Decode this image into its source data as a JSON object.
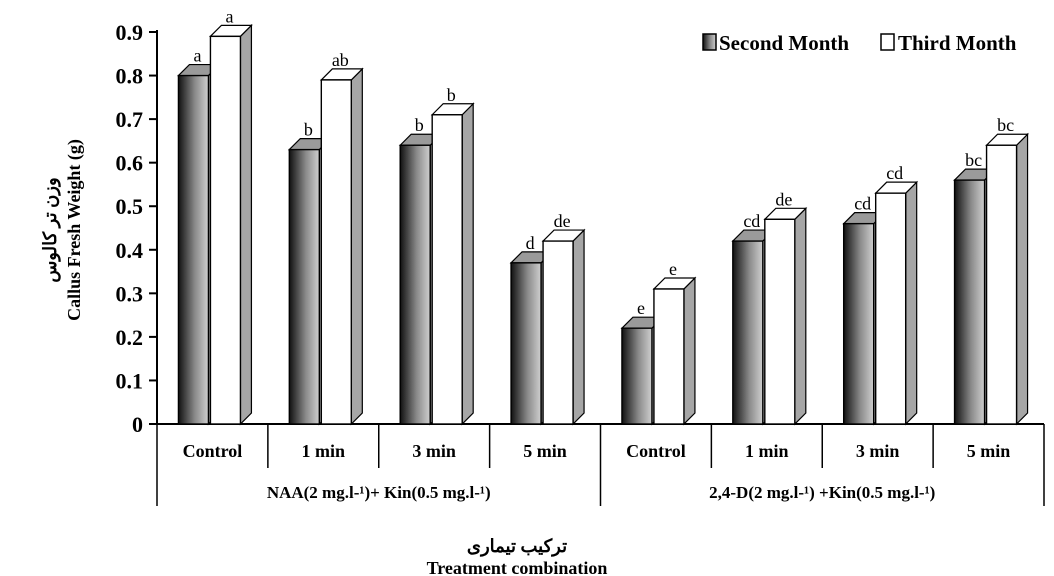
{
  "chart_data": {
    "type": "bar",
    "categories": [
      "Control",
      "1 min",
      "3 min",
      "5 min",
      "Control",
      "1 min",
      "3 min",
      "5 min"
    ],
    "groups": [
      {
        "label": "NAA(2 mg.l-¹)+ Kin(0.5 mg.l-¹)",
        "span": [
          0,
          3
        ]
      },
      {
        "label": "2,4-D(2 mg.l-¹) +Kin(0.5 mg.l-¹)",
        "span": [
          4,
          7
        ]
      }
    ],
    "series": [
      {
        "name": "Second Month",
        "values": [
          0.8,
          0.63,
          0.64,
          0.37,
          0.22,
          0.42,
          0.46,
          0.56
        ],
        "letters": [
          "a",
          "b",
          "b",
          "d",
          "e",
          "cd",
          "cd",
          "bc"
        ]
      },
      {
        "name": "Third Month",
        "values": [
          0.89,
          0.79,
          0.71,
          0.42,
          0.31,
          0.47,
          0.53,
          0.64
        ],
        "letters": [
          "a",
          "ab",
          "b",
          "de",
          "e",
          "de",
          "cd",
          "bc"
        ]
      }
    ],
    "ylim": [
      0,
      0.9
    ],
    "yticks": [
      "0",
      "0.1",
      "0.2",
      "0.3",
      "0.4",
      "0.5",
      "0.6",
      "0.7",
      "0.8",
      "0.9"
    ],
    "ylabel_fa": "وزن تر کالوس",
    "ylabel": "Callus Fresh Weight (g)",
    "xlabel_fa": "ترکیب تیماری",
    "xlabel": "Treatment combination",
    "legend_position": "top-right",
    "colors": {
      "second_dark": "#1a1a1a",
      "second_light": "#c8c8c8",
      "third_fill": "#ffffff",
      "side_gray": "#a6a6a6",
      "outline": "#000000"
    }
  }
}
